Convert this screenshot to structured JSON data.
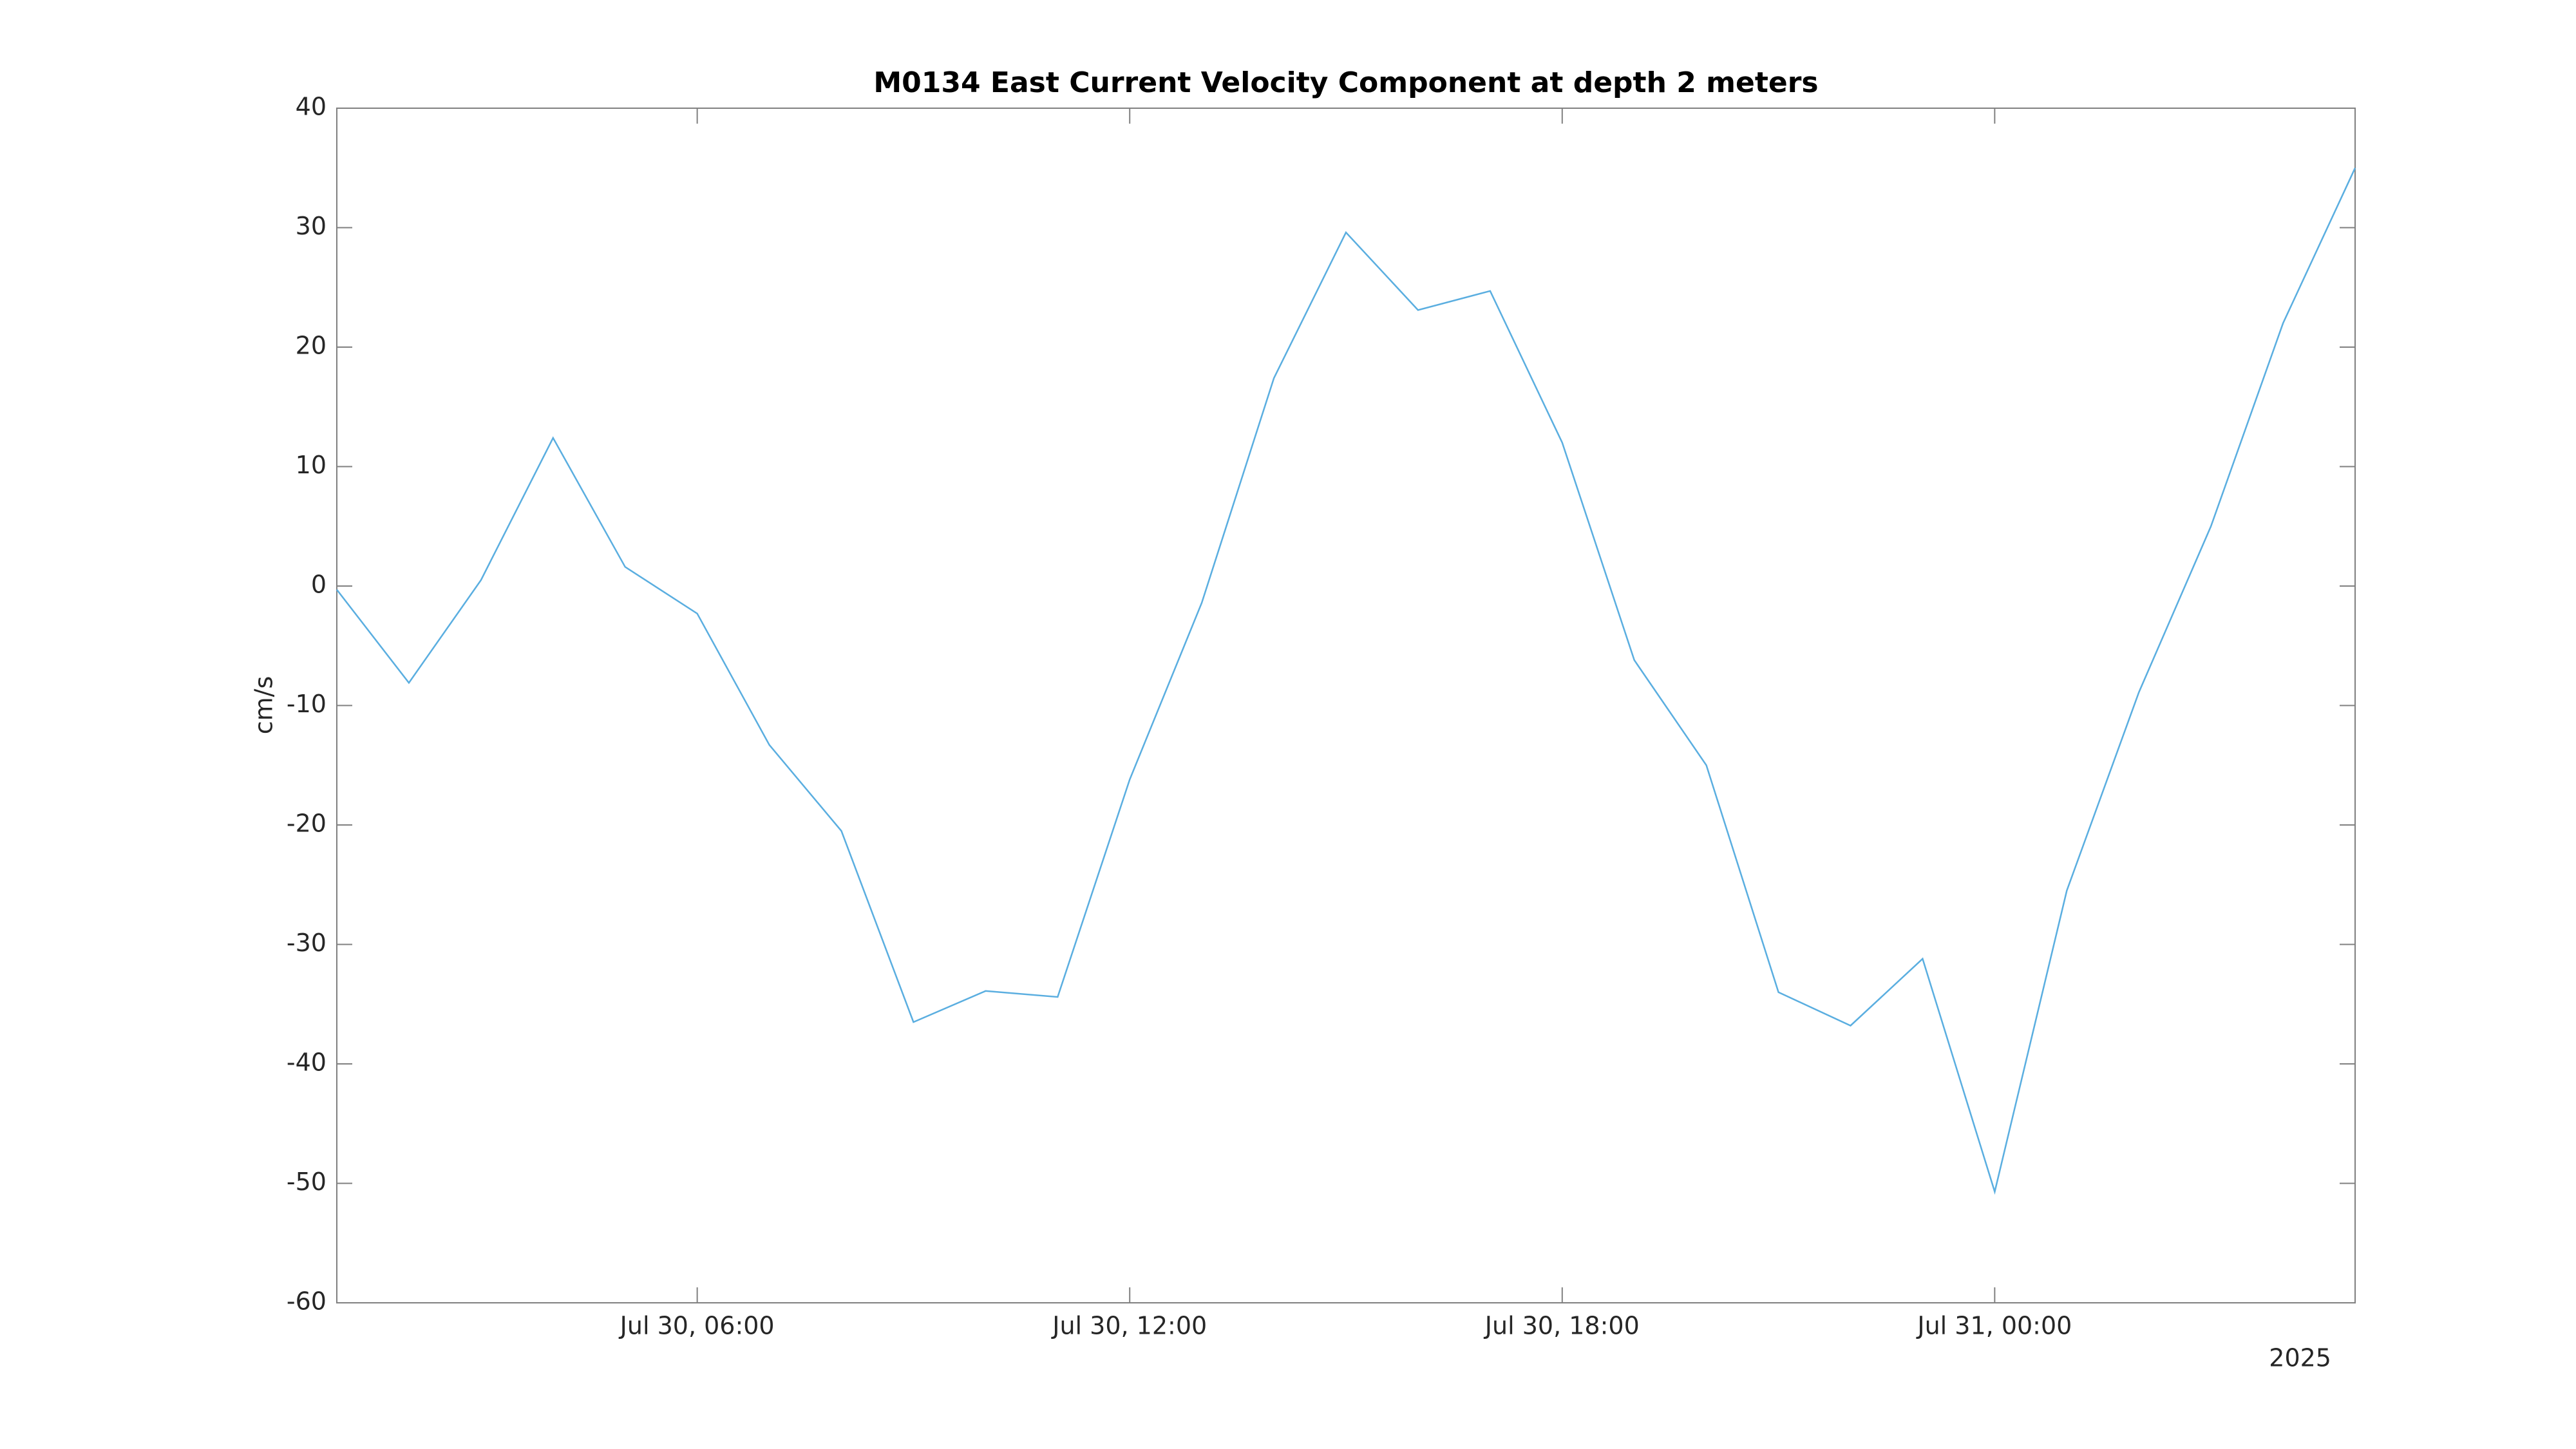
{
  "chart_data": {
    "type": "line",
    "title": "M0134 East Current Velocity Component at depth 2 meters",
    "y_label": "cm/s",
    "x_year_label": "2025",
    "x": [
      "2025-07-30T01:00",
      "2025-07-30T02:00",
      "2025-07-30T03:00",
      "2025-07-30T04:00",
      "2025-07-30T05:00",
      "2025-07-30T06:00",
      "2025-07-30T07:00",
      "2025-07-30T08:00",
      "2025-07-30T09:00",
      "2025-07-30T10:00",
      "2025-07-30T11:00",
      "2025-07-30T12:00",
      "2025-07-30T13:00",
      "2025-07-30T14:00",
      "2025-07-30T15:00",
      "2025-07-30T16:00",
      "2025-07-30T17:00",
      "2025-07-30T18:00",
      "2025-07-30T19:00",
      "2025-07-30T20:00",
      "2025-07-30T21:00",
      "2025-07-30T22:00",
      "2025-07-30T23:00",
      "2025-07-31T00:00",
      "2025-07-31T01:00",
      "2025-07-31T02:00",
      "2025-07-31T03:00",
      "2025-07-31T04:00",
      "2025-07-31T05:00"
    ],
    "values": [
      -0.3,
      -8.1,
      0.5,
      12.4,
      1.6,
      -2.3,
      -13.3,
      -20.5,
      -36.5,
      -33.9,
      -34.4,
      -16.2,
      -1.4,
      17.4,
      29.6,
      23.1,
      24.7,
      12.0,
      -6.2,
      -15.0,
      -34.0,
      -36.8,
      -31.2,
      -50.7,
      -25.5,
      -8.9,
      5.0,
      22.0,
      35.0
    ],
    "color": "#5aaee0",
    "xlim": [
      "2025-07-30T01:00",
      "2025-07-31T05:00"
    ],
    "xticks": [
      {
        "value": "2025-07-30T06:00",
        "label": "Jul 30, 06:00"
      },
      {
        "value": "2025-07-30T12:00",
        "label": "Jul 30, 12:00"
      },
      {
        "value": "2025-07-30T18:00",
        "label": "Jul 30, 18:00"
      },
      {
        "value": "2025-07-31T00:00",
        "label": "Jul 31, 00:00"
      }
    ],
    "ylim": [
      -60,
      40
    ],
    "yticks": [
      -60,
      -50,
      -40,
      -30,
      -20,
      -10,
      0,
      10,
      20,
      30,
      40
    ],
    "grid": false
  }
}
